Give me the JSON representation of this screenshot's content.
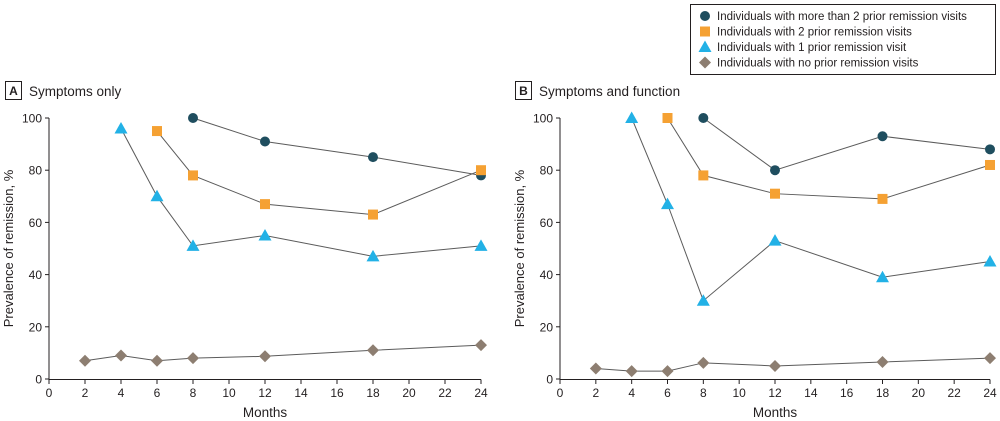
{
  "legend": {
    "items": [
      {
        "label": "Individuals with more than 2 prior remission visits",
        "marker": "circle",
        "color": "#1f4e5f"
      },
      {
        "label": "Individuals with 2 prior remission visits",
        "marker": "square",
        "color": "#f5a133"
      },
      {
        "label": "Individuals with 1 prior remission visit",
        "marker": "triangle",
        "color": "#22b1e6"
      },
      {
        "label": "Individuals with no prior remission visits",
        "marker": "diamond",
        "color": "#8d7e71"
      }
    ]
  },
  "chart_data": [
    {
      "type": "line",
      "panel_letter": "A",
      "title": "Symptoms only",
      "xlabel": "Months",
      "ylabel": "Prevalence of remission, %",
      "xlim": [
        0,
        24
      ],
      "ylim": [
        0,
        100
      ],
      "xticks": [
        0,
        2,
        4,
        6,
        8,
        10,
        12,
        14,
        16,
        18,
        20,
        22,
        24
      ],
      "yticks": [
        0,
        20,
        40,
        60,
        80,
        100
      ],
      "series": [
        {
          "name": "Individuals with more than 2 prior remission visits",
          "x": [
            8,
            12,
            18,
            24
          ],
          "y": [
            100,
            91,
            85,
            78
          ]
        },
        {
          "name": "Individuals with 2 prior remission visits",
          "x": [
            6,
            8,
            12,
            18,
            24
          ],
          "y": [
            95,
            78,
            67,
            63,
            80
          ]
        },
        {
          "name": "Individuals with 1 prior remission visit",
          "x": [
            4,
            6,
            8,
            12,
            18,
            24
          ],
          "y": [
            96,
            70,
            51,
            55,
            47,
            51
          ]
        },
        {
          "name": "Individuals with no prior remission visits",
          "x": [
            2,
            4,
            6,
            8,
            12,
            18,
            24
          ],
          "y": [
            7,
            9,
            7,
            8,
            8.7,
            11,
            13
          ]
        }
      ]
    },
    {
      "type": "line",
      "panel_letter": "B",
      "title": "Symptoms and function",
      "xlabel": "Months",
      "ylabel": "Prevalence of remission, %",
      "xlim": [
        0,
        24
      ],
      "ylim": [
        0,
        100
      ],
      "xticks": [
        0,
        2,
        4,
        6,
        8,
        10,
        12,
        14,
        16,
        18,
        20,
        22,
        24
      ],
      "yticks": [
        0,
        20,
        40,
        60,
        80,
        100
      ],
      "series": [
        {
          "name": "Individuals with more than 2 prior remission visits",
          "x": [
            8,
            12,
            18,
            24
          ],
          "y": [
            100,
            80,
            93,
            88
          ]
        },
        {
          "name": "Individuals with 2 prior remission visits",
          "x": [
            6,
            8,
            12,
            18,
            24
          ],
          "y": [
            100,
            78,
            71,
            69,
            82
          ]
        },
        {
          "name": "Individuals with 1 prior remission visit",
          "x": [
            4,
            6,
            8,
            12,
            18,
            24
          ],
          "y": [
            100,
            67,
            30,
            53,
            39,
            45
          ]
        },
        {
          "name": "Individuals with no prior remission visits",
          "x": [
            2,
            4,
            6,
            8,
            12,
            18,
            24
          ],
          "y": [
            4,
            3,
            3,
            6.2,
            5,
            6.5,
            8
          ]
        }
      ]
    }
  ]
}
